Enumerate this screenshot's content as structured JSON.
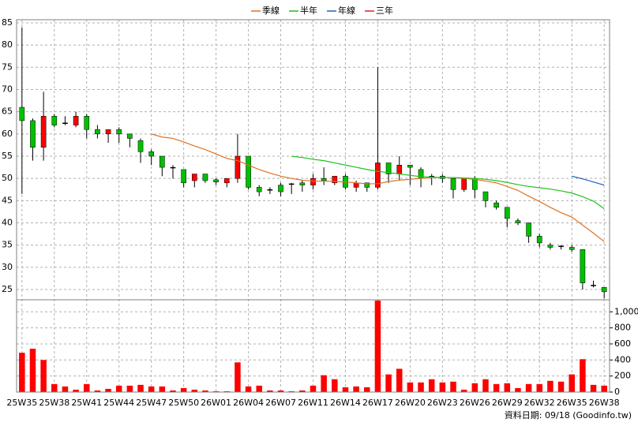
{
  "chart_data": {
    "type": "candlestick",
    "categories": [
      "25W35",
      null,
      null,
      "25W38",
      null,
      null,
      "25W41",
      null,
      null,
      "25W44",
      null,
      null,
      "25W47",
      null,
      null,
      "25W50",
      null,
      null,
      "26W01",
      null,
      null,
      "26W04",
      null,
      null,
      "26W07",
      null,
      null,
      "26W11",
      null,
      null,
      "26W14",
      null,
      null,
      "26W17",
      null,
      null,
      "26W20",
      null,
      null,
      "26W23",
      null,
      null,
      "26W26",
      null,
      null,
      "26W29",
      null,
      null,
      "26W32",
      null,
      null,
      "26W35",
      null,
      null,
      "26W38"
    ],
    "open": [
      66,
      63,
      57,
      64,
      62.5,
      62,
      64,
      61,
      60,
      61,
      60,
      58.5,
      56,
      55,
      52.5,
      52,
      49.5,
      51,
      49.7,
      49,
      50,
      55,
      48,
      47.5,
      48.5,
      48.8,
      49,
      48.5,
      50,
      49,
      50.5,
      48,
      49,
      48,
      53.5,
      51,
      53,
      52,
      50.5,
      50.5,
      50,
      47.5,
      50,
      47,
      44.5,
      43.5,
      40.5,
      40,
      37,
      35,
      34.8,
      34.5,
      34,
      26,
      25.5
    ],
    "high": [
      84,
      63.5,
      69.5,
      64.5,
      64,
      65,
      64.5,
      62,
      61,
      61.5,
      60,
      59,
      56.5,
      55,
      53,
      52,
      51,
      51,
      50,
      50,
      60,
      55,
      48.5,
      48,
      49,
      49,
      49.5,
      51,
      52.5,
      50.5,
      51,
      49.5,
      49,
      75,
      53.5,
      55,
      53,
      52.5,
      51,
      51,
      50,
      50,
      50.5,
      47,
      45,
      43.5,
      41,
      40,
      37.5,
      35.5,
      35,
      35,
      34,
      27,
      25.5
    ],
    "low": [
      46.5,
      54,
      54,
      61.5,
      62,
      61.5,
      59,
      59,
      58,
      58,
      57,
      53.5,
      53,
      50.5,
      50,
      48,
      48,
      49,
      48.5,
      48,
      49,
      47.5,
      46,
      46.5,
      46,
      46.5,
      47,
      47.5,
      48.5,
      48.5,
      47.5,
      47,
      47,
      47.5,
      49,
      49.5,
      48.5,
      48,
      48.5,
      49,
      45.5,
      47,
      45.5,
      43.5,
      43,
      39,
      39.5,
      35.5,
      34.5,
      34,
      34,
      33.5,
      25,
      25.5,
      23
    ],
    "close": [
      63,
      57,
      64,
      62,
      62.5,
      64,
      61,
      60,
      61,
      60,
      59,
      56,
      55,
      52.5,
      52.5,
      49,
      51,
      49.5,
      49.2,
      50,
      55,
      48,
      47,
      47.5,
      47,
      48.8,
      48.5,
      50,
      49.5,
      50.5,
      48,
      49,
      48,
      53.5,
      51,
      53,
      52.5,
      50,
      50.5,
      50,
      47.5,
      50,
      47.5,
      45,
      43.5,
      41,
      40,
      37,
      35.5,
      34.5,
      34.8,
      34,
      26.5,
      26,
      24.5
    ],
    "up_color": "#ff0000",
    "down_color": "#00c000",
    "series": [
      {
        "name": "季線",
        "color": "#e07020",
        "values": [
          null,
          null,
          null,
          null,
          null,
          null,
          null,
          null,
          null,
          null,
          null,
          null,
          60,
          59.3,
          59,
          58.2,
          57.3,
          56.5,
          55.5,
          54.5,
          54,
          53,
          52,
          51.2,
          50.5,
          50,
          49.6,
          49.4,
          49.4,
          49.3,
          49.2,
          49,
          48.8,
          48.8,
          49.3,
          49.6,
          49.8,
          50,
          50.2,
          50.2,
          50.2,
          50,
          49.8,
          49.4,
          49,
          48.2,
          47.3,
          46,
          44.8,
          43.5,
          42.3,
          41.3,
          39.5,
          37.7,
          35.8
        ]
      },
      {
        "name": "半年",
        "color": "#20c020",
        "values": [
          null,
          null,
          null,
          null,
          null,
          null,
          null,
          null,
          null,
          null,
          null,
          null,
          null,
          null,
          null,
          null,
          null,
          null,
          null,
          null,
          null,
          null,
          null,
          null,
          null,
          55,
          54.7,
          54.3,
          54,
          53.5,
          53,
          52.5,
          52,
          51.6,
          51.3,
          51,
          50.7,
          50.4,
          50.3,
          50.2,
          50.2,
          50.1,
          50,
          49.8,
          49.5,
          49.1,
          48.6,
          48.2,
          47.9,
          47.6,
          47.2,
          46.7,
          45.9,
          44.9,
          43.2
        ]
      },
      {
        "name": "年線",
        "color": "#2060c0",
        "values": [
          null,
          null,
          null,
          null,
          null,
          null,
          null,
          null,
          null,
          null,
          null,
          null,
          null,
          null,
          null,
          null,
          null,
          null,
          null,
          null,
          null,
          null,
          null,
          null,
          null,
          null,
          null,
          null,
          null,
          null,
          null,
          null,
          null,
          null,
          null,
          null,
          null,
          null,
          null,
          null,
          null,
          null,
          null,
          null,
          null,
          null,
          null,
          null,
          null,
          null,
          null,
          50.5,
          49.9,
          49.2,
          48.5
        ]
      },
      {
        "name": "三年",
        "color": "#e02020",
        "values": [
          null,
          null,
          null,
          null,
          null,
          null,
          null,
          null,
          null,
          null,
          null,
          null,
          null,
          null,
          null,
          null,
          null,
          null,
          null,
          null,
          null,
          null,
          null,
          null,
          null,
          null,
          null,
          null,
          null,
          null,
          null,
          null,
          null,
          null,
          null,
          null,
          null,
          null,
          null,
          null,
          null,
          null,
          null,
          null,
          null,
          null,
          null,
          null,
          null,
          null,
          null,
          null,
          null,
          null,
          null
        ]
      }
    ],
    "ylim": [
      22.7,
      85.7
    ],
    "yticks": [
      25,
      30,
      35,
      40,
      45,
      50,
      55,
      60,
      65,
      70,
      75,
      80,
      85
    ],
    "volume": [
      490,
      540,
      400,
      100,
      70,
      30,
      100,
      20,
      40,
      80,
      80,
      90,
      70,
      70,
      20,
      50,
      30,
      20,
      10,
      10,
      370,
      70,
      80,
      20,
      20,
      10,
      20,
      80,
      210,
      160,
      60,
      70,
      60,
      1140,
      220,
      290,
      120,
      120,
      160,
      120,
      130,
      30,
      110,
      160,
      100,
      110,
      50,
      100,
      100,
      140,
      130,
      220,
      410,
      90,
      80
    ],
    "volume_color": "#ff0000",
    "y2lim": [
      0,
      1150
    ],
    "y2ticks": [
      0,
      200,
      400,
      600,
      800,
      {
        "value": 1000,
        "label": "1,000"
      }
    ],
    "grid": true,
    "footer": "資料日期: 09/18  (Goodinfo.tw)"
  }
}
